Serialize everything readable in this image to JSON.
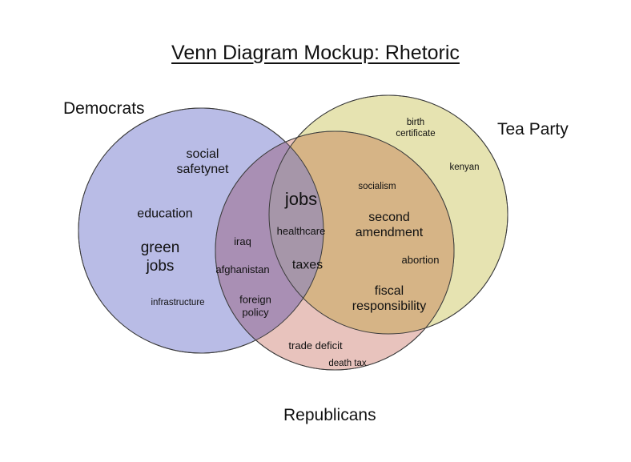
{
  "title": "Venn Diagram Mockup: Rhetoric",
  "sets": {
    "democrats": {
      "label": "Democrats",
      "color": "#b9bce6"
    },
    "tea_party": {
      "label": "Tea Party",
      "color": "#e6e3b1"
    },
    "republicans": {
      "label": "Republicans",
      "color": "#e8c3bd"
    },
    "overlap_colors": {
      "democrats_republicans": "#a98fb4",
      "tea_party_republicans": "#d6b486",
      "all": "#a696a9"
    }
  },
  "terms": {
    "democrats_only": [
      "social\nsafetynet",
      "education",
      "green\njobs",
      "infrastructure"
    ],
    "democrats_republicans": [
      "iraq",
      "afghanistan",
      "foreign\npolicy"
    ],
    "all_three": [
      "jobs",
      "healthcare",
      "taxes"
    ],
    "tea_party_republicans": [
      "socialism",
      "second\namendment",
      "abortion",
      "fiscal\nresponsibility"
    ],
    "tea_party_only": [
      "birth\ncertificate",
      "kenyan"
    ],
    "republicans_only": [
      "trade deficit",
      "death tax"
    ]
  }
}
